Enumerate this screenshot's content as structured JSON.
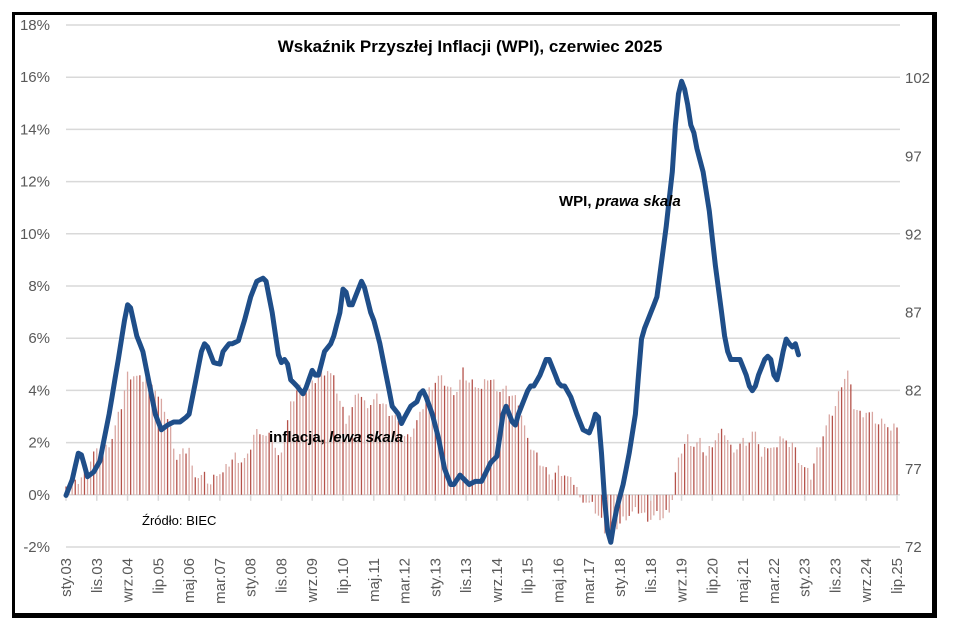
{
  "chart_data": {
    "type": "line+bar",
    "title": "Wskaźnik Przyszłej Inflacji (WPI), czerwiec 2025",
    "source": "Źródło: BIEC",
    "annotations": {
      "wpi_label_main": "WPI, ",
      "wpi_label_italic": "prawa skala",
      "inflation_label_main": "inflacja, ",
      "inflation_label_italic": "lewa skala"
    },
    "left_axis": {
      "label": "inflacja",
      "ylim": [
        -2,
        18
      ],
      "ticks": [
        -2,
        0,
        2,
        4,
        6,
        8,
        10,
        12,
        14,
        16,
        18
      ],
      "tick_labels": [
        "-2%",
        "0%",
        "2%",
        "4%",
        "6%",
        "8%",
        "10%",
        "12%",
        "14%",
        "16%",
        "18%"
      ]
    },
    "right_axis": {
      "label": "WPI",
      "ylim": [
        72,
        105.4
      ],
      "ticks": [
        72,
        77,
        82,
        87,
        92,
        97,
        102
      ],
      "tick_labels": [
        "72",
        "77",
        "82",
        "87",
        "92",
        "97",
        "102"
      ]
    },
    "x_axis": {
      "start": "2003-01",
      "end": "2025-07",
      "tick_labels": [
        "sty.03",
        "lis.03",
        "wrz.04",
        "lip.05",
        "maj.06",
        "mar.07",
        "sty.08",
        "lis.08",
        "wrz.09",
        "lip.10",
        "maj.11",
        "mar.12",
        "sty.13",
        "lis.13",
        "wrz.14",
        "lip.15",
        "maj.16",
        "mar.17",
        "sty.18",
        "lis.18",
        "wrz.19",
        "lip.20",
        "maj.21",
        "mar.22",
        "sty.23",
        "lis.23",
        "wrz.24",
        "lip.25"
      ],
      "tick_step_months": 10
    },
    "grid": true,
    "colors": {
      "wpi_line": "#1f4e89",
      "inflation_bar_dark": "#b5524a",
      "inflation_bar_light": "#d9a7a2",
      "grid": "#d9d9d9",
      "tick_text": "#595959"
    },
    "series": [
      {
        "name": "WPI",
        "axis": "right",
        "type": "line",
        "keypoints_month_value": [
          [
            0,
            75.3
          ],
          [
            2,
            76.3
          ],
          [
            4,
            78.0
          ],
          [
            5,
            77.9
          ],
          [
            7,
            76.5
          ],
          [
            9,
            76.8
          ],
          [
            11,
            77.5
          ],
          [
            14,
            80.5
          ],
          [
            17,
            84.0
          ],
          [
            19,
            86.5
          ],
          [
            20,
            87.5
          ],
          [
            21,
            87.3
          ],
          [
            23,
            85.5
          ],
          [
            25,
            84.5
          ],
          [
            27,
            82.5
          ],
          [
            29,
            80.5
          ],
          [
            31,
            79.5
          ],
          [
            33,
            79.8
          ],
          [
            35,
            80.0
          ],
          [
            37,
            80.0
          ],
          [
            39,
            80.3
          ],
          [
            40,
            80.5
          ],
          [
            42,
            82.5
          ],
          [
            44,
            84.5
          ],
          [
            45,
            85.0
          ],
          [
            46,
            84.8
          ],
          [
            48,
            83.8
          ],
          [
            50,
            83.7
          ],
          [
            51,
            84.5
          ],
          [
            53,
            85.0
          ],
          [
            54,
            85.0
          ],
          [
            56,
            85.2
          ],
          [
            58,
            86.5
          ],
          [
            60,
            88.0
          ],
          [
            62,
            89.0
          ],
          [
            64,
            89.2
          ],
          [
            65,
            89.0
          ],
          [
            67,
            87.0
          ],
          [
            69,
            84.3
          ],
          [
            70,
            83.8
          ],
          [
            71,
            84.0
          ],
          [
            72,
            83.7
          ],
          [
            73,
            82.7
          ],
          [
            75,
            82.3
          ],
          [
            77,
            81.8
          ],
          [
            78,
            82.2
          ],
          [
            80,
            83.3
          ],
          [
            81,
            83.0
          ],
          [
            82,
            83.0
          ],
          [
            84,
            84.5
          ],
          [
            86,
            85.0
          ],
          [
            87,
            85.5
          ],
          [
            89,
            87.0
          ],
          [
            90,
            88.5
          ],
          [
            91,
            88.3
          ],
          [
            92,
            87.5
          ],
          [
            93,
            87.5
          ],
          [
            95,
            88.5
          ],
          [
            96,
            89.0
          ],
          [
            97,
            88.6
          ],
          [
            99,
            87.0
          ],
          [
            100,
            86.5
          ],
          [
            102,
            85.0
          ],
          [
            104,
            83.0
          ],
          [
            106,
            81.0
          ],
          [
            108,
            80.5
          ],
          [
            109,
            79.9
          ],
          [
            110,
            80.3
          ],
          [
            112,
            81.0
          ],
          [
            114,
            81.3
          ],
          [
            115,
            81.8
          ],
          [
            116,
            82.0
          ],
          [
            117,
            81.6
          ],
          [
            119,
            80.5
          ],
          [
            121,
            79.0
          ],
          [
            123,
            77.0
          ],
          [
            125,
            76.0
          ],
          [
            126,
            76.0
          ],
          [
            128,
            76.6
          ],
          [
            130,
            76.2
          ],
          [
            131,
            76.0
          ],
          [
            133,
            76.2
          ],
          [
            135,
            76.2
          ],
          [
            137,
            77.0
          ],
          [
            138,
            77.4
          ],
          [
            140,
            77.8
          ],
          [
            142,
            80.5
          ],
          [
            143,
            81.0
          ],
          [
            145,
            80.0
          ],
          [
            146,
            79.8
          ],
          [
            147,
            80.5
          ],
          [
            149,
            81.5
          ],
          [
            150,
            82.0
          ],
          [
            151,
            82.3
          ],
          [
            152,
            82.3
          ],
          [
            154,
            83.0
          ],
          [
            156,
            84.0
          ],
          [
            157,
            84.0
          ],
          [
            159,
            83.0
          ],
          [
            160,
            82.5
          ],
          [
            161,
            82.3
          ],
          [
            162,
            82.3
          ],
          [
            164,
            81.6
          ],
          [
            166,
            80.5
          ],
          [
            168,
            79.5
          ],
          [
            170,
            79.3
          ],
          [
            171,
            79.8
          ],
          [
            172,
            80.5
          ],
          [
            173,
            80.3
          ],
          [
            174,
            78.0
          ],
          [
            175,
            75.0
          ],
          [
            176,
            73.0
          ],
          [
            177,
            72.3
          ],
          [
            178,
            73.5
          ],
          [
            179,
            74.5
          ],
          [
            181,
            76.0
          ],
          [
            183,
            78.0
          ],
          [
            185,
            80.5
          ],
          [
            186,
            83.0
          ],
          [
            187,
            85.3
          ],
          [
            188,
            86.0
          ],
          [
            189,
            86.5
          ],
          [
            190,
            87.0
          ],
          [
            192,
            88.0
          ],
          [
            194,
            91.0
          ],
          [
            195,
            92.5
          ],
          [
            197,
            96.0
          ],
          [
            198,
            99.0
          ],
          [
            199,
            101.0
          ],
          [
            200,
            101.8
          ],
          [
            201,
            101.3
          ],
          [
            202,
            100.3
          ],
          [
            203,
            99.0
          ],
          [
            204,
            98.5
          ],
          [
            205,
            97.5
          ],
          [
            207,
            96.0
          ],
          [
            209,
            93.5
          ],
          [
            211,
            90.0
          ],
          [
            213,
            87.0
          ],
          [
            214,
            85.5
          ],
          [
            215,
            84.5
          ],
          [
            216,
            84.0
          ],
          [
            218,
            84.0
          ],
          [
            219,
            84.0
          ],
          [
            221,
            83.0
          ],
          [
            222,
            82.3
          ],
          [
            223,
            82.0
          ],
          [
            224,
            82.3
          ],
          [
            225,
            83.0
          ],
          [
            227,
            84.0
          ],
          [
            228,
            84.2
          ],
          [
            229,
            84.0
          ],
          [
            230,
            83.0
          ],
          [
            231,
            82.7
          ],
          [
            232,
            83.5
          ],
          [
            233,
            84.5
          ],
          [
            234,
            85.3
          ],
          [
            235,
            85.0
          ],
          [
            236,
            84.8
          ],
          [
            237,
            85.0
          ],
          [
            238,
            84.3
          ]
        ]
      },
      {
        "name": "inflacja",
        "axis": "left",
        "type": "bar",
        "keypoints_month_value": [
          [
            0,
            0.5
          ],
          [
            3,
            0.4
          ],
          [
            6,
            0.8
          ],
          [
            9,
            1.6
          ],
          [
            12,
            1.6
          ],
          [
            15,
            2.2
          ],
          [
            18,
            3.4
          ],
          [
            20,
            4.6
          ],
          [
            22,
            4.6
          ],
          [
            24,
            4.4
          ],
          [
            26,
            4.5
          ],
          [
            28,
            4.4
          ],
          [
            30,
            3.7
          ],
          [
            32,
            3.3
          ],
          [
            34,
            2.5
          ],
          [
            36,
            1.4
          ],
          [
            38,
            1.6
          ],
          [
            40,
            1.8
          ],
          [
            41,
            1.0
          ],
          [
            43,
            0.7
          ],
          [
            45,
            0.7
          ],
          [
            47,
            0.4
          ],
          [
            49,
            0.9
          ],
          [
            51,
            0.8
          ],
          [
            53,
            1.2
          ],
          [
            55,
            1.5
          ],
          [
            57,
            1.3
          ],
          [
            59,
            1.4
          ],
          [
            61,
            2.3
          ],
          [
            63,
            2.5
          ],
          [
            65,
            2.2
          ],
          [
            67,
            2.2
          ],
          [
            69,
            1.4
          ],
          [
            71,
            2.2
          ],
          [
            73,
            3.4
          ],
          [
            75,
            4.0
          ],
          [
            77,
            4.2
          ],
          [
            79,
            4.0
          ],
          [
            81,
            4.4
          ],
          [
            83,
            4.7
          ],
          [
            85,
            4.8
          ],
          [
            87,
            4.4
          ],
          [
            89,
            3.6
          ],
          [
            91,
            2.9
          ],
          [
            93,
            3.3
          ],
          [
            95,
            4.0
          ],
          [
            97,
            3.5
          ],
          [
            99,
            3.5
          ],
          [
            101,
            3.7
          ],
          [
            103,
            3.5
          ],
          [
            105,
            3.2
          ],
          [
            107,
            3.0
          ],
          [
            109,
            2.3
          ],
          [
            111,
            2.2
          ],
          [
            113,
            2.6
          ],
          [
            115,
            3.0
          ],
          [
            117,
            3.8
          ],
          [
            119,
            4.2
          ],
          [
            121,
            4.5
          ],
          [
            123,
            4.3
          ],
          [
            125,
            4.0
          ],
          [
            127,
            4.0
          ],
          [
            129,
            4.7
          ],
          [
            131,
            4.3
          ],
          [
            133,
            4.3
          ],
          [
            135,
            4.0
          ],
          [
            137,
            4.5
          ],
          [
            139,
            4.3
          ],
          [
            141,
            4.0
          ],
          [
            143,
            4.0
          ],
          [
            145,
            3.8
          ],
          [
            147,
            3.6
          ],
          [
            149,
            2.6
          ],
          [
            150,
            2.0
          ],
          [
            152,
            1.7
          ],
          [
            154,
            1.3
          ],
          [
            156,
            1.0
          ],
          [
            157,
            0.6
          ],
          [
            158,
            0.7
          ],
          [
            160,
            1.0
          ],
          [
            162,
            0.8
          ],
          [
            164,
            0.5
          ],
          [
            165,
            0.5
          ],
          [
            166,
            0.3
          ],
          [
            167,
            -0.1
          ],
          [
            168,
            -0.3
          ],
          [
            170,
            -0.3
          ],
          [
            172,
            -0.6
          ],
          [
            174,
            -1.0
          ],
          [
            176,
            -1.6
          ],
          [
            178,
            -1.3
          ],
          [
            180,
            -1.1
          ],
          [
            182,
            -0.8
          ],
          [
            184,
            -0.7
          ],
          [
            186,
            -0.6
          ],
          [
            188,
            -0.8
          ],
          [
            190,
            -0.9
          ],
          [
            192,
            -0.8
          ],
          [
            194,
            -0.9
          ],
          [
            196,
            -0.5
          ],
          [
            197,
            -0.2
          ],
          [
            198,
            0.8
          ],
          [
            200,
            1.7
          ],
          [
            202,
            2.2
          ],
          [
            204,
            1.9
          ],
          [
            206,
            2.0
          ],
          [
            208,
            1.5
          ],
          [
            210,
            2.0
          ],
          [
            212,
            2.3
          ],
          [
            214,
            2.4
          ],
          [
            216,
            1.8
          ],
          [
            218,
            1.8
          ],
          [
            220,
            2.0
          ],
          [
            222,
            2.0
          ],
          [
            224,
            2.6
          ],
          [
            226,
            1.4
          ],
          [
            228,
            1.9
          ],
          [
            230,
            1.7
          ],
          [
            232,
            2.3
          ],
          [
            234,
            1.9
          ],
          [
            236,
            2.0
          ],
          [
            238,
            1.4
          ],
          [
            240,
            1.0
          ],
          [
            242,
            0.7
          ],
          [
            244,
            1.7
          ],
          [
            246,
            2.3
          ],
          [
            248,
            2.9
          ],
          [
            250,
            3.4
          ],
          [
            252,
            4.3
          ],
          [
            254,
            4.7
          ],
          [
            256,
            3.4
          ],
          [
            258,
            3.1
          ],
          [
            260,
            3.2
          ],
          [
            262,
            3.0
          ],
          [
            264,
            2.7
          ],
          [
            266,
            2.9
          ],
          [
            268,
            2.4
          ],
          [
            270,
            2.7
          ]
        ]
      }
    ]
  }
}
